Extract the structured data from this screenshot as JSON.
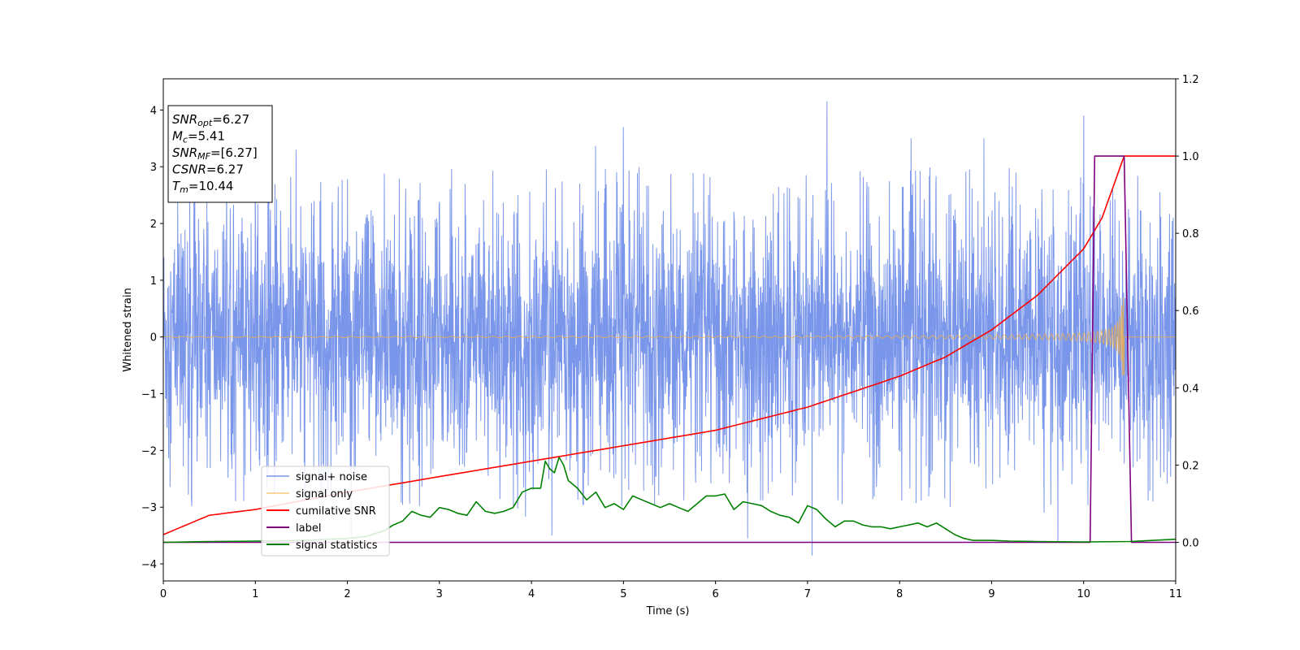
{
  "chart_data": {
    "type": "line",
    "xlabel": "Time (s)",
    "ylabel": "Whitened strain",
    "xlim": [
      0,
      11
    ],
    "ylim_left": [
      -4.3,
      4.55
    ],
    "ylim_right": [
      -0.1,
      1.2
    ],
    "x_ticks": [
      "0",
      "1",
      "2",
      "3",
      "4",
      "5",
      "6",
      "7",
      "8",
      "9",
      "10",
      "11"
    ],
    "y_left_ticks": [
      "−4",
      "−3",
      "−2",
      "−1",
      "0",
      "1",
      "2",
      "3",
      "4"
    ],
    "y_right_ticks": [
      "0.0",
      "0.2",
      "0.4",
      "0.6",
      "0.8",
      "1.0",
      "1.2"
    ],
    "legend_position": "lower-left",
    "annotation": [
      {
        "base": "SNR",
        "sub": "opt",
        "value": "=6.27"
      },
      {
        "base": "M",
        "sub": "c",
        "value": "=5.41"
      },
      {
        "base": "SNR",
        "sub": "MF",
        "value": "=[6.27]"
      },
      {
        "base": "CSNR",
        "sub": "",
        "value": "=6.27"
      },
      {
        "base": "T",
        "sub": "m",
        "value": "=10.44"
      }
    ],
    "series": [
      {
        "name": "signal+ noise",
        "color": "#4169e1",
        "axis": "left",
        "kind": "noise",
        "noise_spread": 1.4,
        "x_range": [
          0,
          11
        ],
        "notable_spikes": [
          {
            "x": 7.21,
            "y": 4.15
          },
          {
            "x": 10.0,
            "y": 3.9
          },
          {
            "x": 5.0,
            "y": 3.7
          },
          {
            "x": 7.05,
            "y": -3.85
          },
          {
            "x": 9.72,
            "y": -3.6
          },
          {
            "x": 6.35,
            "y": -3.55
          }
        ]
      },
      {
        "name": "signal only",
        "color": "#f5b041",
        "axis": "left",
        "kind": "chirp",
        "merger_time": 10.44,
        "peak_amplitude": 0.7
      },
      {
        "name": "cumilative SNR",
        "color": "#ff0000",
        "axis": "right",
        "x": [
          0,
          0.5,
          1,
          2,
          3,
          4,
          5,
          6,
          7,
          7.5,
          8,
          8.5,
          9,
          9.5,
          10,
          10.2,
          10.44,
          11
        ],
        "y": [
          0.02,
          0.07,
          0.085,
          0.13,
          0.17,
          0.21,
          0.25,
          0.29,
          0.35,
          0.39,
          0.43,
          0.48,
          0.55,
          0.64,
          0.76,
          0.84,
          1.0,
          1.0
        ]
      },
      {
        "name": "label",
        "color": "#800080",
        "axis": "right",
        "x": [
          0,
          10.07,
          10.12,
          10.44,
          10.52,
          11
        ],
        "y": [
          0,
          0,
          1,
          1,
          0,
          0
        ]
      },
      {
        "name": "signal statistics",
        "color": "#008000",
        "axis": "right",
        "x": [
          0,
          0.5,
          1,
          1.5,
          2,
          2.2,
          2.4,
          2.5,
          2.6,
          2.7,
          2.8,
          2.9,
          3.0,
          3.1,
          3.2,
          3.3,
          3.4,
          3.5,
          3.6,
          3.7,
          3.8,
          3.9,
          4.0,
          4.1,
          4.15,
          4.2,
          4.25,
          4.3,
          4.35,
          4.4,
          4.5,
          4.6,
          4.7,
          4.8,
          4.9,
          5.0,
          5.1,
          5.2,
          5.3,
          5.4,
          5.5,
          5.6,
          5.7,
          5.8,
          5.9,
          6.0,
          6.1,
          6.2,
          6.3,
          6.4,
          6.5,
          6.6,
          6.7,
          6.8,
          6.9,
          7.0,
          7.1,
          7.2,
          7.3,
          7.4,
          7.5,
          7.6,
          7.7,
          7.8,
          7.9,
          8.0,
          8.1,
          8.2,
          8.3,
          8.4,
          8.5,
          8.6,
          8.7,
          8.8,
          8.9,
          9.0,
          9.2,
          9.5,
          10.0,
          10.5,
          11.0
        ],
        "y": [
          0.0,
          0.002,
          0.003,
          0.005,
          0.01,
          0.015,
          0.03,
          0.045,
          0.055,
          0.08,
          0.07,
          0.065,
          0.09,
          0.085,
          0.075,
          0.07,
          0.105,
          0.08,
          0.075,
          0.08,
          0.09,
          0.13,
          0.14,
          0.14,
          0.21,
          0.19,
          0.18,
          0.22,
          0.2,
          0.16,
          0.14,
          0.11,
          0.13,
          0.09,
          0.1,
          0.085,
          0.12,
          0.11,
          0.1,
          0.09,
          0.1,
          0.09,
          0.08,
          0.1,
          0.12,
          0.12,
          0.125,
          0.085,
          0.105,
          0.1,
          0.095,
          0.08,
          0.07,
          0.065,
          0.05,
          0.095,
          0.085,
          0.06,
          0.04,
          0.055,
          0.055,
          0.045,
          0.04,
          0.04,
          0.035,
          0.04,
          0.045,
          0.05,
          0.04,
          0.05,
          0.035,
          0.02,
          0.01,
          0.005,
          0.005,
          0.005,
          0.003,
          0.002,
          0.001,
          0.002,
          0.008
        ]
      }
    ]
  }
}
